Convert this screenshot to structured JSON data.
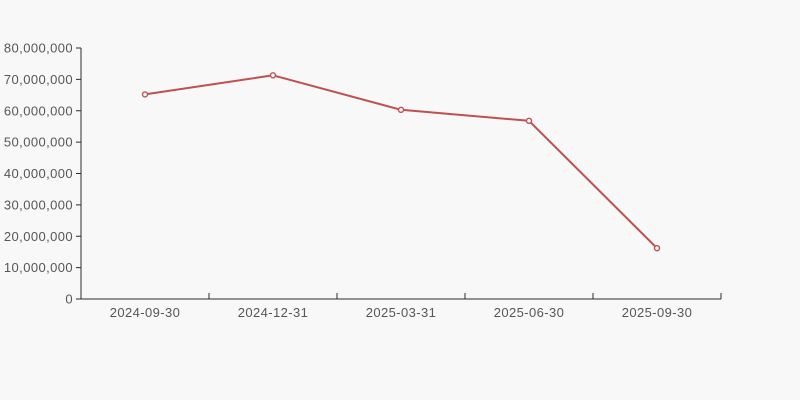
{
  "chart": {
    "background_color": "#f8f8f8",
    "axis_color": "#2b2b2e",
    "label_color": "#55565a",
    "line_color": "#c05050",
    "marker_fill": "#ffffff"
  },
  "chart_data": {
    "type": "line",
    "title": "",
    "xlabel": "",
    "ylabel": "",
    "categories": [
      "2024-09-30",
      "2024-12-31",
      "2025-03-31",
      "2025-06-30",
      "2025-09-30"
    ],
    "series": [
      {
        "name": "",
        "values": [
          65200000,
          71300000,
          60300000,
          56800000,
          16200000
        ]
      }
    ],
    "ylim": [
      0,
      80000000
    ],
    "y_ticks": [
      0,
      10000000,
      20000000,
      30000000,
      40000000,
      50000000,
      60000000,
      70000000,
      80000000
    ],
    "y_tick_labels": [
      "0",
      "10,000,000",
      "20,000,000",
      "30,000,000",
      "40,000,000",
      "50,000,000",
      "60,000,000",
      "70,000,000",
      "80,000,000"
    ],
    "grid": false,
    "legend_position": "none",
    "marker": "hollow-circle"
  }
}
